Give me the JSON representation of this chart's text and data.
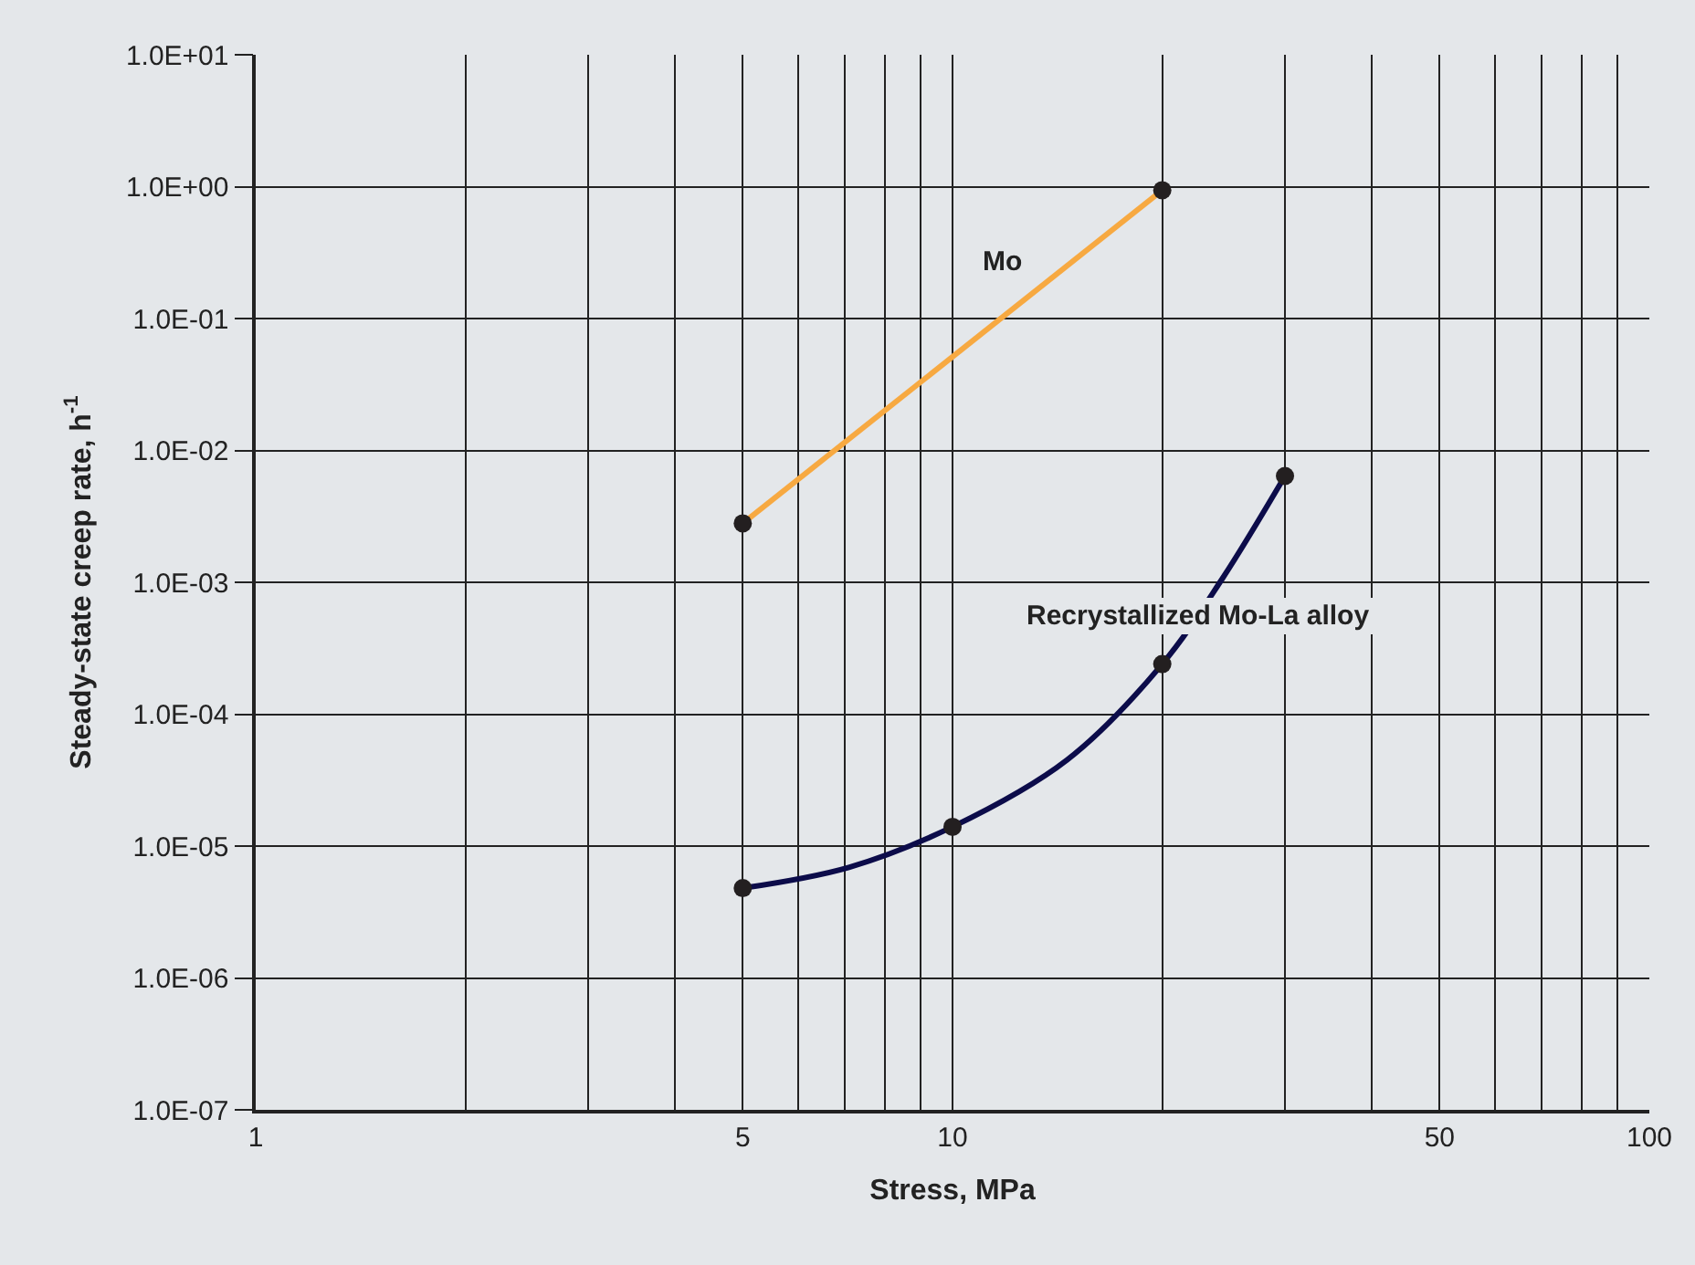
{
  "chart_data": {
    "type": "line",
    "xlabel": "Stress, MPa",
    "ylabel": "Steady-state creep rate, h$^{-1}$",
    "log": "xy",
    "grid": true,
    "xlim": [
      1,
      100
    ],
    "xticks": [
      1,
      {
        "value": 2,
        "label": null
      },
      {
        "value": 3,
        "label": null
      },
      {
        "value": 4,
        "label": null
      },
      5,
      {
        "value": 6,
        "label": null
      },
      {
        "value": 7,
        "label": null
      },
      {
        "value": 8,
        "label": null
      },
      {
        "value": 9,
        "label": null
      },
      10,
      {
        "value": 20,
        "label": null
      },
      {
        "value": 30,
        "label": null
      },
      {
        "value": 40,
        "label": null
      },
      50,
      {
        "value": 60,
        "label": null
      },
      {
        "value": 70,
        "label": null
      },
      {
        "value": 80,
        "label": null
      },
      {
        "value": 90,
        "label": null
      },
      100
    ],
    "ylim": [
      1e-07,
      10
    ],
    "yticks": [
      {
        "value": 1e-07,
        "label": "1.0E-07"
      },
      {
        "value": 1e-06,
        "label": "1.0E-06"
      },
      {
        "value": 1e-05,
        "label": "1.0E-05"
      },
      {
        "value": 0.0001,
        "label": "1.0E-04"
      },
      {
        "value": 0.001,
        "label": "1.0E-03"
      },
      {
        "value": 0.01,
        "label": "1.0E-02"
      },
      {
        "value": 0.1,
        "label": "1.0E-01"
      },
      {
        "value": 1,
        "label": "1.0E+00"
      },
      {
        "value": 10,
        "label": "1.0E+01"
      }
    ],
    "series": [
      {
        "marker": "none",
        "color": "#f7a941",
        "x": [
          5,
          20
        ],
        "values": [
          0.0028,
          0.94
        ]
      },
      {
        "marker": "none",
        "color": "#0c0c4a",
        "x": [
          5,
          7.1,
          10,
          14.6,
          20,
          24.4,
          30
        ],
        "values": [
          4.8e-06,
          6.9e-06,
          1.4e-05,
          4.5e-05,
          0.00024,
          0.00107,
          0.0064
        ]
      },
      {
        "type": "scatter",
        "marker": "circle",
        "color": "#231f20",
        "x": [
          5,
          20
        ],
        "values": [
          0.0028,
          0.94
        ]
      },
      {
        "type": "scatter",
        "marker": "circle",
        "color": "#231f20",
        "x": [
          5,
          10,
          20,
          30
        ],
        "values": [
          4.8e-06,
          1.4e-05,
          0.00024,
          0.0064
        ]
      }
    ],
    "annotations": [
      {
        "text": "Mo",
        "x": 11.8,
        "y": 0.27
      },
      {
        "text": "Recrystallized Mo-La alloy",
        "x": 22.5,
        "y": 0.00056
      }
    ]
  }
}
